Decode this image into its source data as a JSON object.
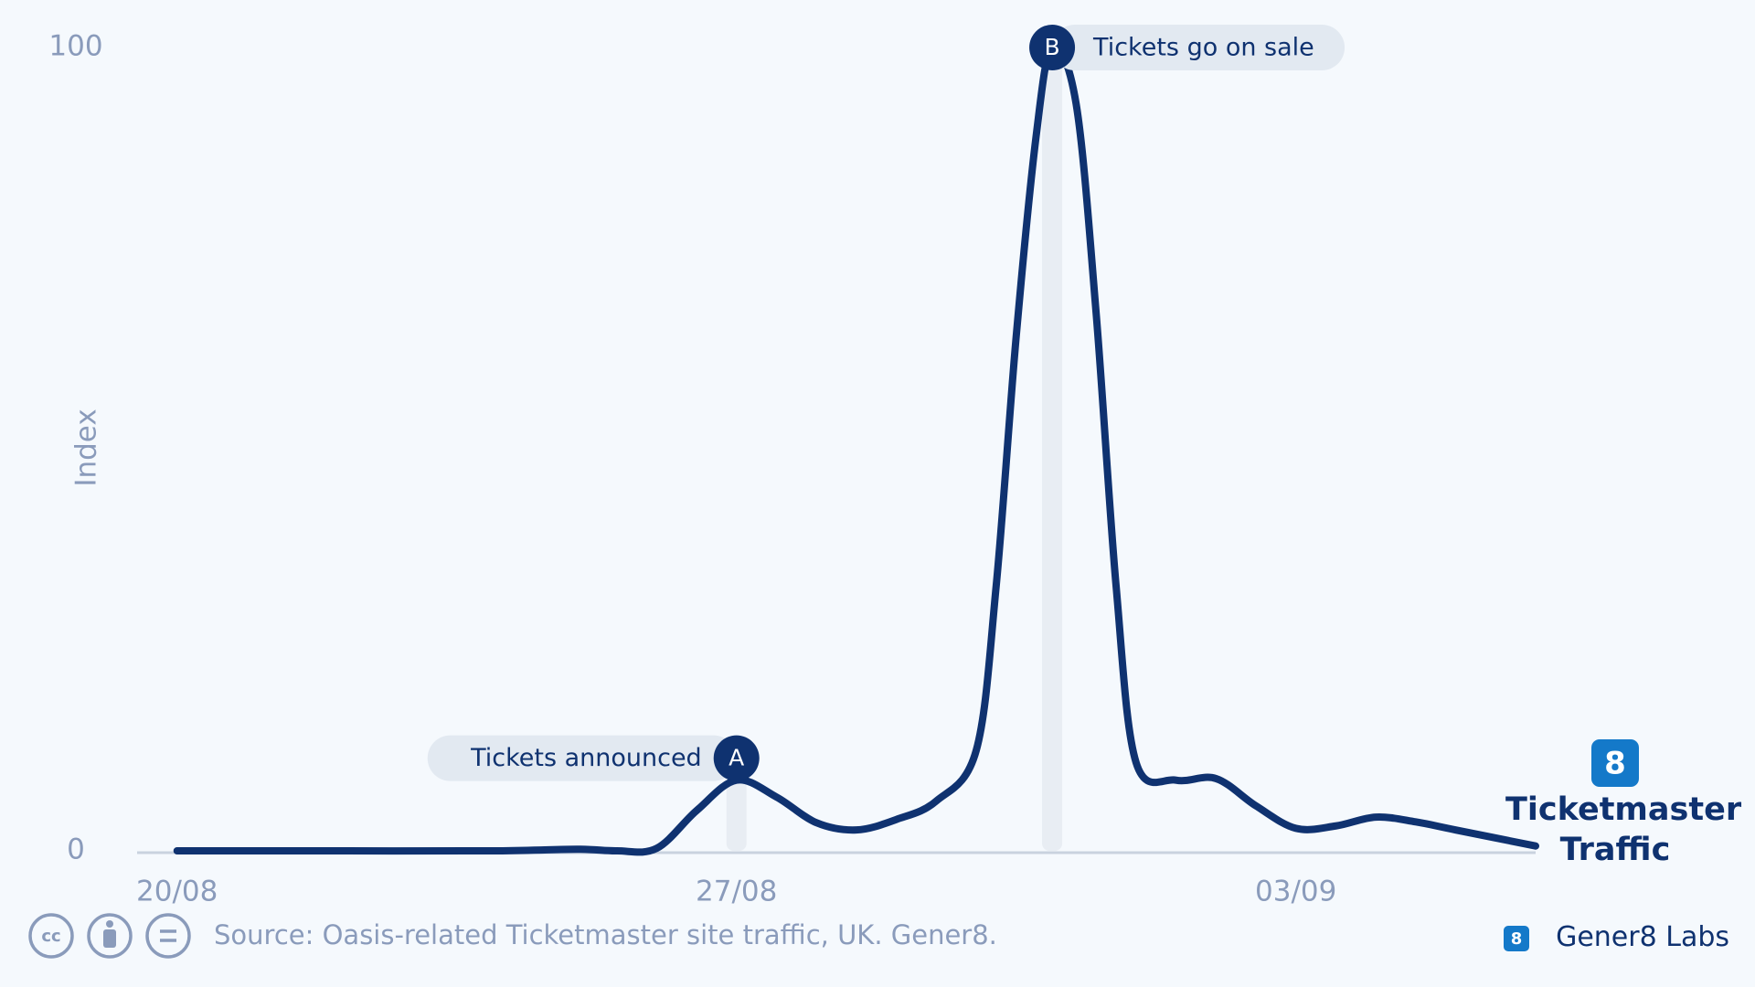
{
  "chart_data": {
    "type": "line",
    "ylabel": "Index",
    "x": [
      0,
      2,
      4,
      5,
      5.5,
      6,
      6.5,
      7,
      7.5,
      8,
      8.5,
      9,
      9.5,
      10,
      10.25,
      10.5,
      10.75,
      10.95,
      11.25,
      11.5,
      11.75,
      12,
      12.5,
      13,
      13.5,
      14,
      14.5,
      15,
      15.5,
      16,
      17
    ],
    "series": [
      {
        "name": "Ticketmaster Traffic",
        "color": "#0f3270",
        "values": [
          0,
          0,
          0,
          0.2,
          0,
          0.3,
          5,
          8.8,
          6.7,
          3.5,
          2.6,
          3.9,
          6.2,
          12.5,
          33,
          64,
          89,
          100,
          93,
          67,
          33,
          11,
          8.8,
          9,
          5.6,
          2.8,
          3.1,
          4.2,
          3.6,
          2.6,
          0.6
        ]
      }
    ],
    "xlim": [
      -0.5,
      17
    ],
    "ylim": [
      0,
      100
    ],
    "xticks": [
      {
        "value": 0,
        "label": "20/08"
      },
      {
        "value": 7,
        "label": "27/08"
      },
      {
        "value": 14,
        "label": "03/09"
      }
    ],
    "yticks": [
      0,
      100
    ],
    "annotations": [
      {
        "label": "A",
        "text": "Tickets announced",
        "x": 7
      },
      {
        "label": "B",
        "text": "Tickets go on sale",
        "x": 10.95
      }
    ],
    "source": "Source: Oasis-related Ticketmaster site traffic, UK. Gener8.",
    "brand": "Gener8 Labs"
  }
}
